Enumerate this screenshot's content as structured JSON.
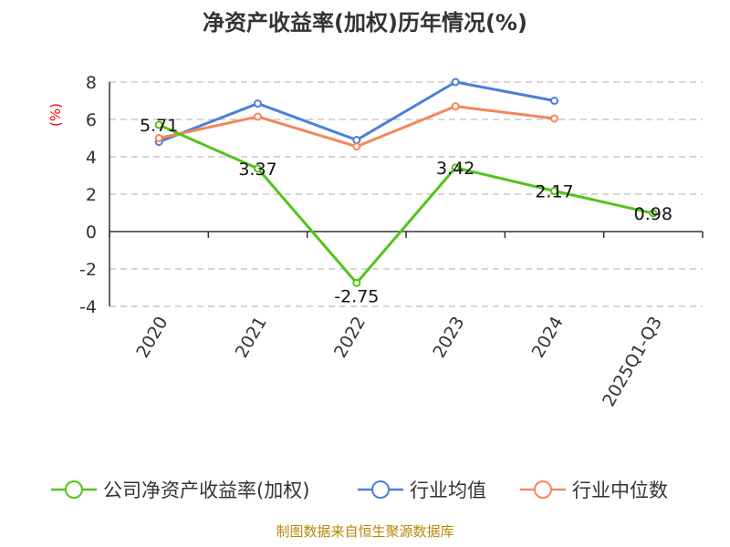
{
  "chart_data": {
    "type": "line",
    "title": "净资产收益率(加权)历年情况(%)",
    "ylabel": "(%)",
    "xlabel": "",
    "categories": [
      "2020",
      "2021",
      "2022",
      "2023",
      "2024",
      "2025Q1-Q3"
    ],
    "ylim": [
      -4,
      8
    ],
    "yticks": [
      -4,
      -2,
      0,
      2,
      4,
      6,
      8
    ],
    "grid": true,
    "legend_position": "bottom",
    "series": [
      {
        "name": "公司净资产收益率(加权)",
        "color": "#52c41a",
        "values": [
          5.71,
          3.37,
          -2.75,
          3.42,
          2.17,
          0.98
        ],
        "labels": [
          "5.71",
          "3.37",
          "-2.75",
          "3.42",
          "2.17",
          "0.98"
        ]
      },
      {
        "name": "行业均值",
        "color": "#4a7fd8",
        "values": [
          4.8,
          6.85,
          4.9,
          8.0,
          7.0,
          null
        ]
      },
      {
        "name": "行业中位数",
        "color": "#f5865a",
        "values": [
          5.0,
          6.15,
          4.55,
          6.7,
          6.05,
          null
        ]
      }
    ]
  },
  "source": "制图数据来自恒生聚源数据库"
}
